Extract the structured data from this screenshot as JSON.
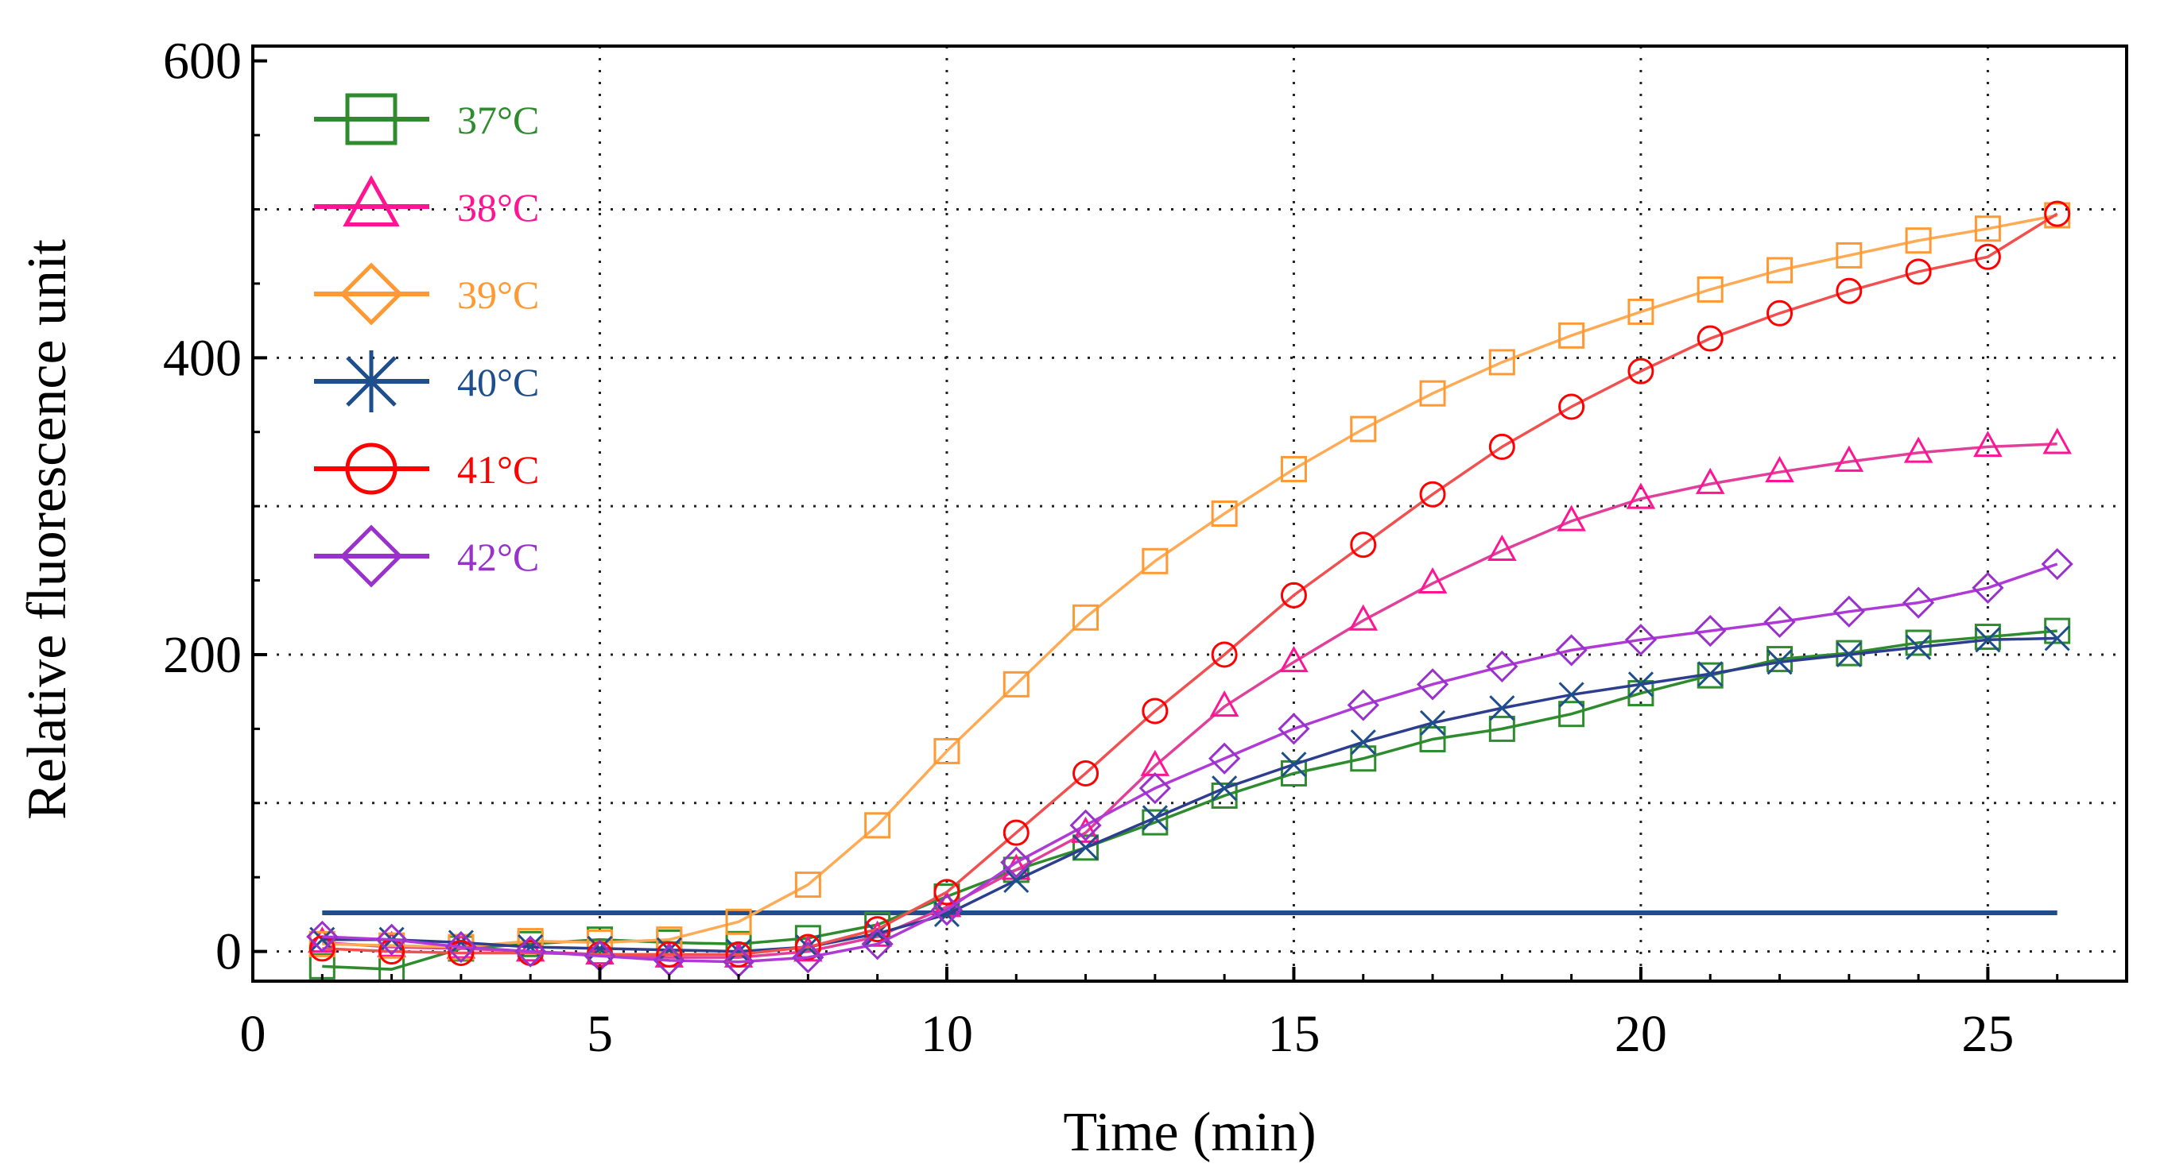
{
  "chart_data": {
    "type": "line",
    "title": "",
    "xlabel": "Time (min)",
    "ylabel": "Relative fluorescence unit",
    "xlim": [
      0,
      27
    ],
    "ylim": [
      -20,
      610
    ],
    "x_ticks": [
      0,
      5,
      10,
      15,
      20,
      25
    ],
    "y_ticks": [
      0,
      200,
      400,
      600
    ],
    "x_grid": [
      5,
      10,
      15,
      20,
      25
    ],
    "y_grid": [
      0,
      100,
      200,
      300,
      400,
      500
    ],
    "grid": "dotted",
    "legend_position": "top-left",
    "x": [
      1,
      2,
      3,
      4,
      5,
      6,
      7,
      8,
      9,
      10,
      11,
      12,
      13,
      14,
      15,
      16,
      17,
      18,
      19,
      20,
      21,
      22,
      23,
      24,
      25,
      26
    ],
    "threshold": {
      "x_start": 1,
      "x_end": 26,
      "y": 26,
      "color": "#1f4e8c"
    },
    "series": [
      {
        "name": "37°C",
        "color": "#2e8b2e",
        "line_color": "#2e8b2e",
        "marker": "square",
        "values": [
          -10,
          -12,
          2,
          5,
          8,
          6,
          5,
          9,
          18,
          37,
          55,
          70,
          87,
          105,
          120,
          130,
          143,
          150,
          160,
          174,
          186,
          197,
          201,
          208,
          212,
          216
        ]
      },
      {
        "name": "38°C",
        "color": "#ff1493",
        "line_color": "#e0409a",
        "marker": "triangle",
        "values": [
          6,
          3,
          2,
          0,
          -2,
          -4,
          -4,
          0,
          10,
          30,
          55,
          80,
          125,
          165,
          195,
          223,
          248,
          270,
          290,
          305,
          315,
          323,
          330,
          336,
          340,
          342
        ]
      },
      {
        "name": "39°C",
        "color": "#ff9933",
        "line_color": "#ffaa55",
        "marker": "square",
        "values": [
          5,
          4,
          3,
          7,
          6,
          8,
          20,
          45,
          85,
          135,
          180,
          225,
          263,
          295,
          325,
          352,
          376,
          397,
          415,
          431,
          446,
          459,
          469,
          479,
          487,
          496
        ]
      },
      {
        "name": "40°C",
        "color": "#1f4e8c",
        "line_color": "#2d3e8f",
        "marker": "x",
        "values": [
          8,
          8,
          6,
          3,
          2,
          1,
          0,
          3,
          12,
          25,
          48,
          70,
          90,
          110,
          126,
          141,
          154,
          164,
          173,
          180,
          187,
          195,
          200,
          205,
          210,
          211
        ]
      },
      {
        "name": "41°C",
        "color": "#ff0000",
        "line_color": "#f05050",
        "marker": "circle",
        "values": [
          2,
          0,
          -1,
          -1,
          -2,
          -2,
          -2,
          3,
          15,
          40,
          80,
          120,
          162,
          200,
          240,
          274,
          308,
          340,
          367,
          391,
          413,
          430,
          445,
          458,
          468,
          497
        ]
      },
      {
        "name": "42°C",
        "color": "#9932cc",
        "line_color": "#b03ad6",
        "marker": "diamond",
        "values": [
          10,
          8,
          3,
          0,
          -3,
          -6,
          -7,
          -4,
          5,
          28,
          60,
          85,
          110,
          130,
          150,
          166,
          180,
          192,
          203,
          210,
          216,
          222,
          229,
          235,
          245,
          261
        ]
      }
    ]
  }
}
